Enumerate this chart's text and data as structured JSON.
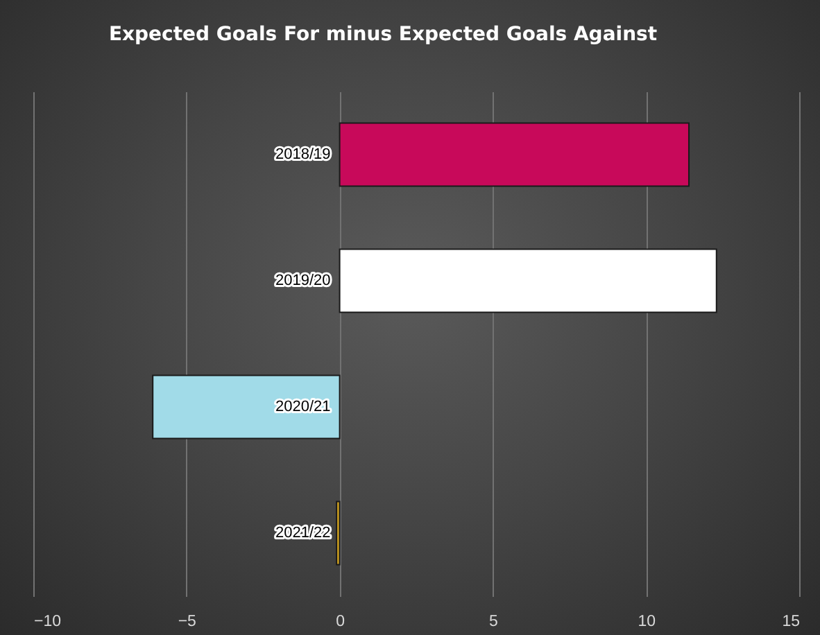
{
  "chart_data": {
    "type": "bar",
    "orientation": "horizontal",
    "title": "Expected Goals For minus Expected Goals Against",
    "categories": [
      "2018/19",
      "2019/20",
      "2020/21",
      "2021/22"
    ],
    "values": [
      11.4,
      12.3,
      -6.1,
      -0.1
    ],
    "colors": [
      "#c8095a",
      "#ffffff",
      "#a1dbe8",
      "#d4a520"
    ],
    "xlim": [
      -10,
      15
    ],
    "xticks": [
      -10,
      -5,
      0,
      5,
      10,
      15
    ],
    "grid": "x"
  }
}
